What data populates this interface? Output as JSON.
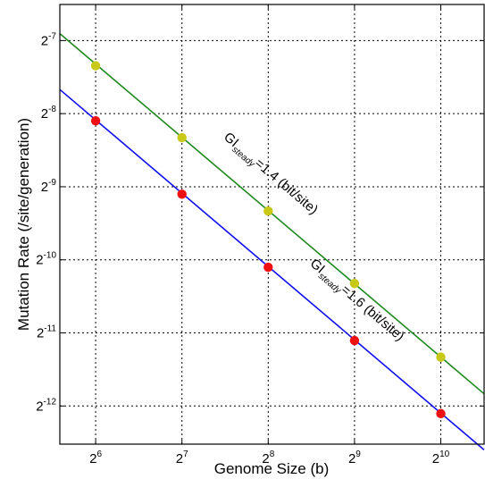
{
  "chart_data": {
    "type": "scatter",
    "xlabel": "Genome Size (b)",
    "ylabel": "Mutation Rate (/site/generation)",
    "x_scale": "log2",
    "y_scale": "log2",
    "xlim": [
      48,
      1450
    ],
    "ylim": [
      0.00017,
      0.011
    ],
    "x_ticks": [
      {
        "base": "2",
        "exp": "6",
        "value": 64
      },
      {
        "base": "2",
        "exp": "7",
        "value": 128
      },
      {
        "base": "2",
        "exp": "8",
        "value": 256
      },
      {
        "base": "2",
        "exp": "9",
        "value": 512
      },
      {
        "base": "2",
        "exp": "10",
        "value": 1024
      }
    ],
    "y_ticks": [
      {
        "base": "2",
        "exp": "-7",
        "value": 0.0078125
      },
      {
        "base": "2",
        "exp": "-8",
        "value": 0.00390625
      },
      {
        "base": "2",
        "exp": "-9",
        "value": 0.001953125
      },
      {
        "base": "2",
        "exp": "-10",
        "value": 0.0009765625
      },
      {
        "base": "2",
        "exp": "-11",
        "value": 0.00048828125
      },
      {
        "base": "2",
        "exp": "-12",
        "value": 0.000244140625
      }
    ],
    "grid": true,
    "series": [
      {
        "color": "#c8c818",
        "marker": "circle",
        "points": [
          {
            "x": 64,
            "y": 0.00615
          },
          {
            "x": 128,
            "y": 0.00311
          },
          {
            "x": 256,
            "y": 0.00155
          },
          {
            "x": 512,
            "y": 0.00078
          },
          {
            "x": 1024,
            "y": 0.000388
          }
        ]
      },
      {
        "color": "#ee1111",
        "marker": "circle",
        "points": [
          {
            "x": 64,
            "y": 0.00365
          },
          {
            "x": 128,
            "y": 0.00182
          },
          {
            "x": 256,
            "y": 0.00091
          },
          {
            "x": 512,
            "y": 0.000454
          },
          {
            "x": 1024,
            "y": 0.000227
          }
        ]
      }
    ],
    "fit_lines": [
      {
        "color": "#208a20",
        "x": [
          48,
          1450
        ],
        "y": [
          0.00834,
          0.000274
        ]
      },
      {
        "color": "#1010ee",
        "x": [
          48,
          1450
        ],
        "y": [
          0.00491,
          0.000161
        ]
      }
    ],
    "annotations": [
      {
        "pre": "GI",
        "sub": "steady",
        "post": "=1.4 (bit/site)",
        "at_x": 256,
        "at_y": 0.00215
      },
      {
        "pre": "GI",
        "sub": "steady",
        "post": "=1.6 (bit/site)",
        "at_x": 512,
        "at_y": 0.000648
      }
    ]
  }
}
